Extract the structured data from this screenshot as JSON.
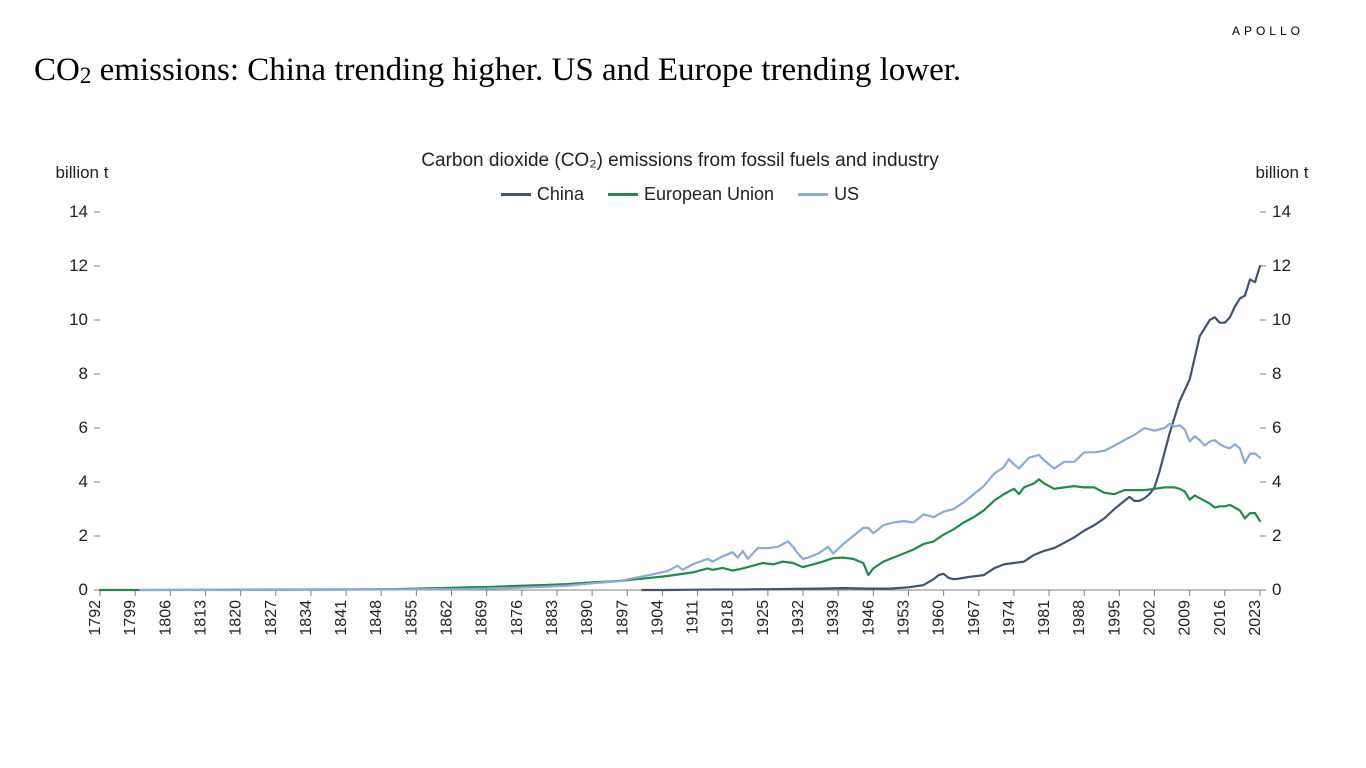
{
  "brand": "APOLLO",
  "title_pre": "CO",
  "title_sub": "2",
  "title_post": " emissions: China trending higher. US and Europe trending lower.",
  "chart": {
    "type": "line",
    "title": "Carbon dioxide (CO₂) emissions from fossil fuels and industry",
    "y_unit_label": "billion t",
    "x_min": 1792,
    "x_max": 2023,
    "x_tick_step": 7,
    "y_min": 0,
    "y_max": 14,
    "y_tick_step": 2,
    "line_width": 2.2,
    "background_color": "#ffffff",
    "axis_color": "#808080",
    "tick_color": "#808080",
    "tick_len": 6,
    "font_family": "Segoe UI, Helvetica Neue, Arial, sans-serif",
    "series": [
      {
        "name": "China",
        "color": "#43536a",
        "points": [
          [
            1900,
            0.0
          ],
          [
            1905,
            0.0
          ],
          [
            1910,
            0.01
          ],
          [
            1915,
            0.02
          ],
          [
            1920,
            0.02
          ],
          [
            1925,
            0.03
          ],
          [
            1930,
            0.04
          ],
          [
            1935,
            0.05
          ],
          [
            1940,
            0.07
          ],
          [
            1945,
            0.05
          ],
          [
            1949,
            0.05
          ],
          [
            1950,
            0.06
          ],
          [
            1953,
            0.1
          ],
          [
            1956,
            0.18
          ],
          [
            1958,
            0.4
          ],
          [
            1959,
            0.55
          ],
          [
            1960,
            0.6
          ],
          [
            1961,
            0.45
          ],
          [
            1962,
            0.4
          ],
          [
            1963,
            0.42
          ],
          [
            1965,
            0.48
          ],
          [
            1968,
            0.55
          ],
          [
            1970,
            0.8
          ],
          [
            1972,
            0.95
          ],
          [
            1974,
            1.0
          ],
          [
            1976,
            1.05
          ],
          [
            1978,
            1.3
          ],
          [
            1980,
            1.45
          ],
          [
            1982,
            1.55
          ],
          [
            1984,
            1.75
          ],
          [
            1986,
            1.95
          ],
          [
            1988,
            2.2
          ],
          [
            1990,
            2.4
          ],
          [
            1992,
            2.65
          ],
          [
            1994,
            3.0
          ],
          [
            1996,
            3.3
          ],
          [
            1997,
            3.45
          ],
          [
            1998,
            3.3
          ],
          [
            1999,
            3.3
          ],
          [
            2000,
            3.4
          ],
          [
            2001,
            3.55
          ],
          [
            2002,
            3.8
          ],
          [
            2003,
            4.4
          ],
          [
            2004,
            5.1
          ],
          [
            2005,
            5.8
          ],
          [
            2006,
            6.4
          ],
          [
            2007,
            7.0
          ],
          [
            2008,
            7.4
          ],
          [
            2009,
            7.8
          ],
          [
            2010,
            8.6
          ],
          [
            2011,
            9.4
          ],
          [
            2012,
            9.7
          ],
          [
            2013,
            10.0
          ],
          [
            2014,
            10.1
          ],
          [
            2015,
            9.9
          ],
          [
            2016,
            9.9
          ],
          [
            2017,
            10.1
          ],
          [
            2018,
            10.5
          ],
          [
            2019,
            10.8
          ],
          [
            2020,
            10.9
          ],
          [
            2021,
            11.5
          ],
          [
            2022,
            11.4
          ],
          [
            2023,
            12.0
          ]
        ]
      },
      {
        "name": "European Union",
        "color": "#1f8a4c",
        "points": [
          [
            1792,
            0.0
          ],
          [
            1800,
            0.0
          ],
          [
            1820,
            0.01
          ],
          [
            1840,
            0.02
          ],
          [
            1850,
            0.03
          ],
          [
            1855,
            0.05
          ],
          [
            1860,
            0.07
          ],
          [
            1865,
            0.1
          ],
          [
            1870,
            0.12
          ],
          [
            1875,
            0.15
          ],
          [
            1880,
            0.18
          ],
          [
            1885,
            0.22
          ],
          [
            1890,
            0.28
          ],
          [
            1895,
            0.33
          ],
          [
            1900,
            0.42
          ],
          [
            1905,
            0.52
          ],
          [
            1910,
            0.65
          ],
          [
            1913,
            0.8
          ],
          [
            1914,
            0.75
          ],
          [
            1916,
            0.82
          ],
          [
            1918,
            0.72
          ],
          [
            1920,
            0.8
          ],
          [
            1922,
            0.9
          ],
          [
            1924,
            1.0
          ],
          [
            1926,
            0.95
          ],
          [
            1928,
            1.05
          ],
          [
            1930,
            1.0
          ],
          [
            1932,
            0.85
          ],
          [
            1934,
            0.95
          ],
          [
            1936,
            1.05
          ],
          [
            1938,
            1.18
          ],
          [
            1940,
            1.2
          ],
          [
            1942,
            1.15
          ],
          [
            1944,
            1.0
          ],
          [
            1945,
            0.55
          ],
          [
            1946,
            0.8
          ],
          [
            1948,
            1.05
          ],
          [
            1950,
            1.2
          ],
          [
            1952,
            1.35
          ],
          [
            1954,
            1.5
          ],
          [
            1956,
            1.7
          ],
          [
            1958,
            1.8
          ],
          [
            1960,
            2.05
          ],
          [
            1962,
            2.25
          ],
          [
            1964,
            2.5
          ],
          [
            1966,
            2.7
          ],
          [
            1968,
            2.95
          ],
          [
            1970,
            3.3
          ],
          [
            1972,
            3.55
          ],
          [
            1974,
            3.75
          ],
          [
            1975,
            3.55
          ],
          [
            1976,
            3.8
          ],
          [
            1978,
            3.95
          ],
          [
            1979,
            4.1
          ],
          [
            1980,
            3.95
          ],
          [
            1982,
            3.75
          ],
          [
            1984,
            3.8
          ],
          [
            1986,
            3.85
          ],
          [
            1988,
            3.8
          ],
          [
            1990,
            3.8
          ],
          [
            1992,
            3.6
          ],
          [
            1994,
            3.55
          ],
          [
            1996,
            3.7
          ],
          [
            1998,
            3.7
          ],
          [
            2000,
            3.7
          ],
          [
            2002,
            3.75
          ],
          [
            2004,
            3.8
          ],
          [
            2006,
            3.8
          ],
          [
            2007,
            3.75
          ],
          [
            2008,
            3.65
          ],
          [
            2009,
            3.35
          ],
          [
            2010,
            3.5
          ],
          [
            2011,
            3.4
          ],
          [
            2012,
            3.3
          ],
          [
            2013,
            3.2
          ],
          [
            2014,
            3.05
          ],
          [
            2015,
            3.1
          ],
          [
            2016,
            3.1
          ],
          [
            2017,
            3.15
          ],
          [
            2018,
            3.05
          ],
          [
            2019,
            2.95
          ],
          [
            2020,
            2.65
          ],
          [
            2021,
            2.85
          ],
          [
            2022,
            2.85
          ],
          [
            2023,
            2.55
          ]
        ]
      },
      {
        "name": "US",
        "color": "#8ea9d2",
        "points": [
          [
            1800,
            0.0
          ],
          [
            1820,
            0.0
          ],
          [
            1840,
            0.01
          ],
          [
            1850,
            0.02
          ],
          [
            1860,
            0.03
          ],
          [
            1865,
            0.03
          ],
          [
            1870,
            0.06
          ],
          [
            1875,
            0.08
          ],
          [
            1880,
            0.12
          ],
          [
            1885,
            0.16
          ],
          [
            1890,
            0.25
          ],
          [
            1895,
            0.32
          ],
          [
            1900,
            0.5
          ],
          [
            1903,
            0.62
          ],
          [
            1905,
            0.7
          ],
          [
            1907,
            0.9
          ],
          [
            1908,
            0.75
          ],
          [
            1910,
            0.95
          ],
          [
            1913,
            1.15
          ],
          [
            1914,
            1.05
          ],
          [
            1916,
            1.25
          ],
          [
            1918,
            1.4
          ],
          [
            1919,
            1.2
          ],
          [
            1920,
            1.45
          ],
          [
            1921,
            1.15
          ],
          [
            1923,
            1.55
          ],
          [
            1925,
            1.55
          ],
          [
            1927,
            1.6
          ],
          [
            1929,
            1.8
          ],
          [
            1930,
            1.6
          ],
          [
            1931,
            1.35
          ],
          [
            1932,
            1.15
          ],
          [
            1933,
            1.2
          ],
          [
            1935,
            1.35
          ],
          [
            1937,
            1.6
          ],
          [
            1938,
            1.35
          ],
          [
            1940,
            1.7
          ],
          [
            1942,
            2.0
          ],
          [
            1944,
            2.3
          ],
          [
            1945,
            2.3
          ],
          [
            1946,
            2.1
          ],
          [
            1948,
            2.4
          ],
          [
            1950,
            2.5
          ],
          [
            1952,
            2.55
          ],
          [
            1954,
            2.5
          ],
          [
            1956,
            2.8
          ],
          [
            1958,
            2.7
          ],
          [
            1960,
            2.9
          ],
          [
            1962,
            3.0
          ],
          [
            1964,
            3.25
          ],
          [
            1966,
            3.55
          ],
          [
            1968,
            3.85
          ],
          [
            1970,
            4.3
          ],
          [
            1972,
            4.55
          ],
          [
            1973,
            4.85
          ],
          [
            1974,
            4.65
          ],
          [
            1975,
            4.5
          ],
          [
            1977,
            4.9
          ],
          [
            1979,
            5.0
          ],
          [
            1980,
            4.8
          ],
          [
            1982,
            4.5
          ],
          [
            1984,
            4.75
          ],
          [
            1986,
            4.75
          ],
          [
            1988,
            5.1
          ],
          [
            1990,
            5.1
          ],
          [
            1992,
            5.15
          ],
          [
            1994,
            5.35
          ],
          [
            1996,
            5.55
          ],
          [
            1998,
            5.75
          ],
          [
            2000,
            6.0
          ],
          [
            2002,
            5.9
          ],
          [
            2004,
            6.0
          ],
          [
            2005,
            6.15
          ],
          [
            2006,
            6.05
          ],
          [
            2007,
            6.1
          ],
          [
            2008,
            5.95
          ],
          [
            2009,
            5.5
          ],
          [
            2010,
            5.7
          ],
          [
            2011,
            5.55
          ],
          [
            2012,
            5.35
          ],
          [
            2013,
            5.5
          ],
          [
            2014,
            5.55
          ],
          [
            2015,
            5.4
          ],
          [
            2016,
            5.3
          ],
          [
            2017,
            5.25
          ],
          [
            2018,
            5.4
          ],
          [
            2019,
            5.25
          ],
          [
            2020,
            4.7
          ],
          [
            2021,
            5.05
          ],
          [
            2022,
            5.05
          ],
          [
            2023,
            4.9
          ]
        ]
      }
    ]
  }
}
